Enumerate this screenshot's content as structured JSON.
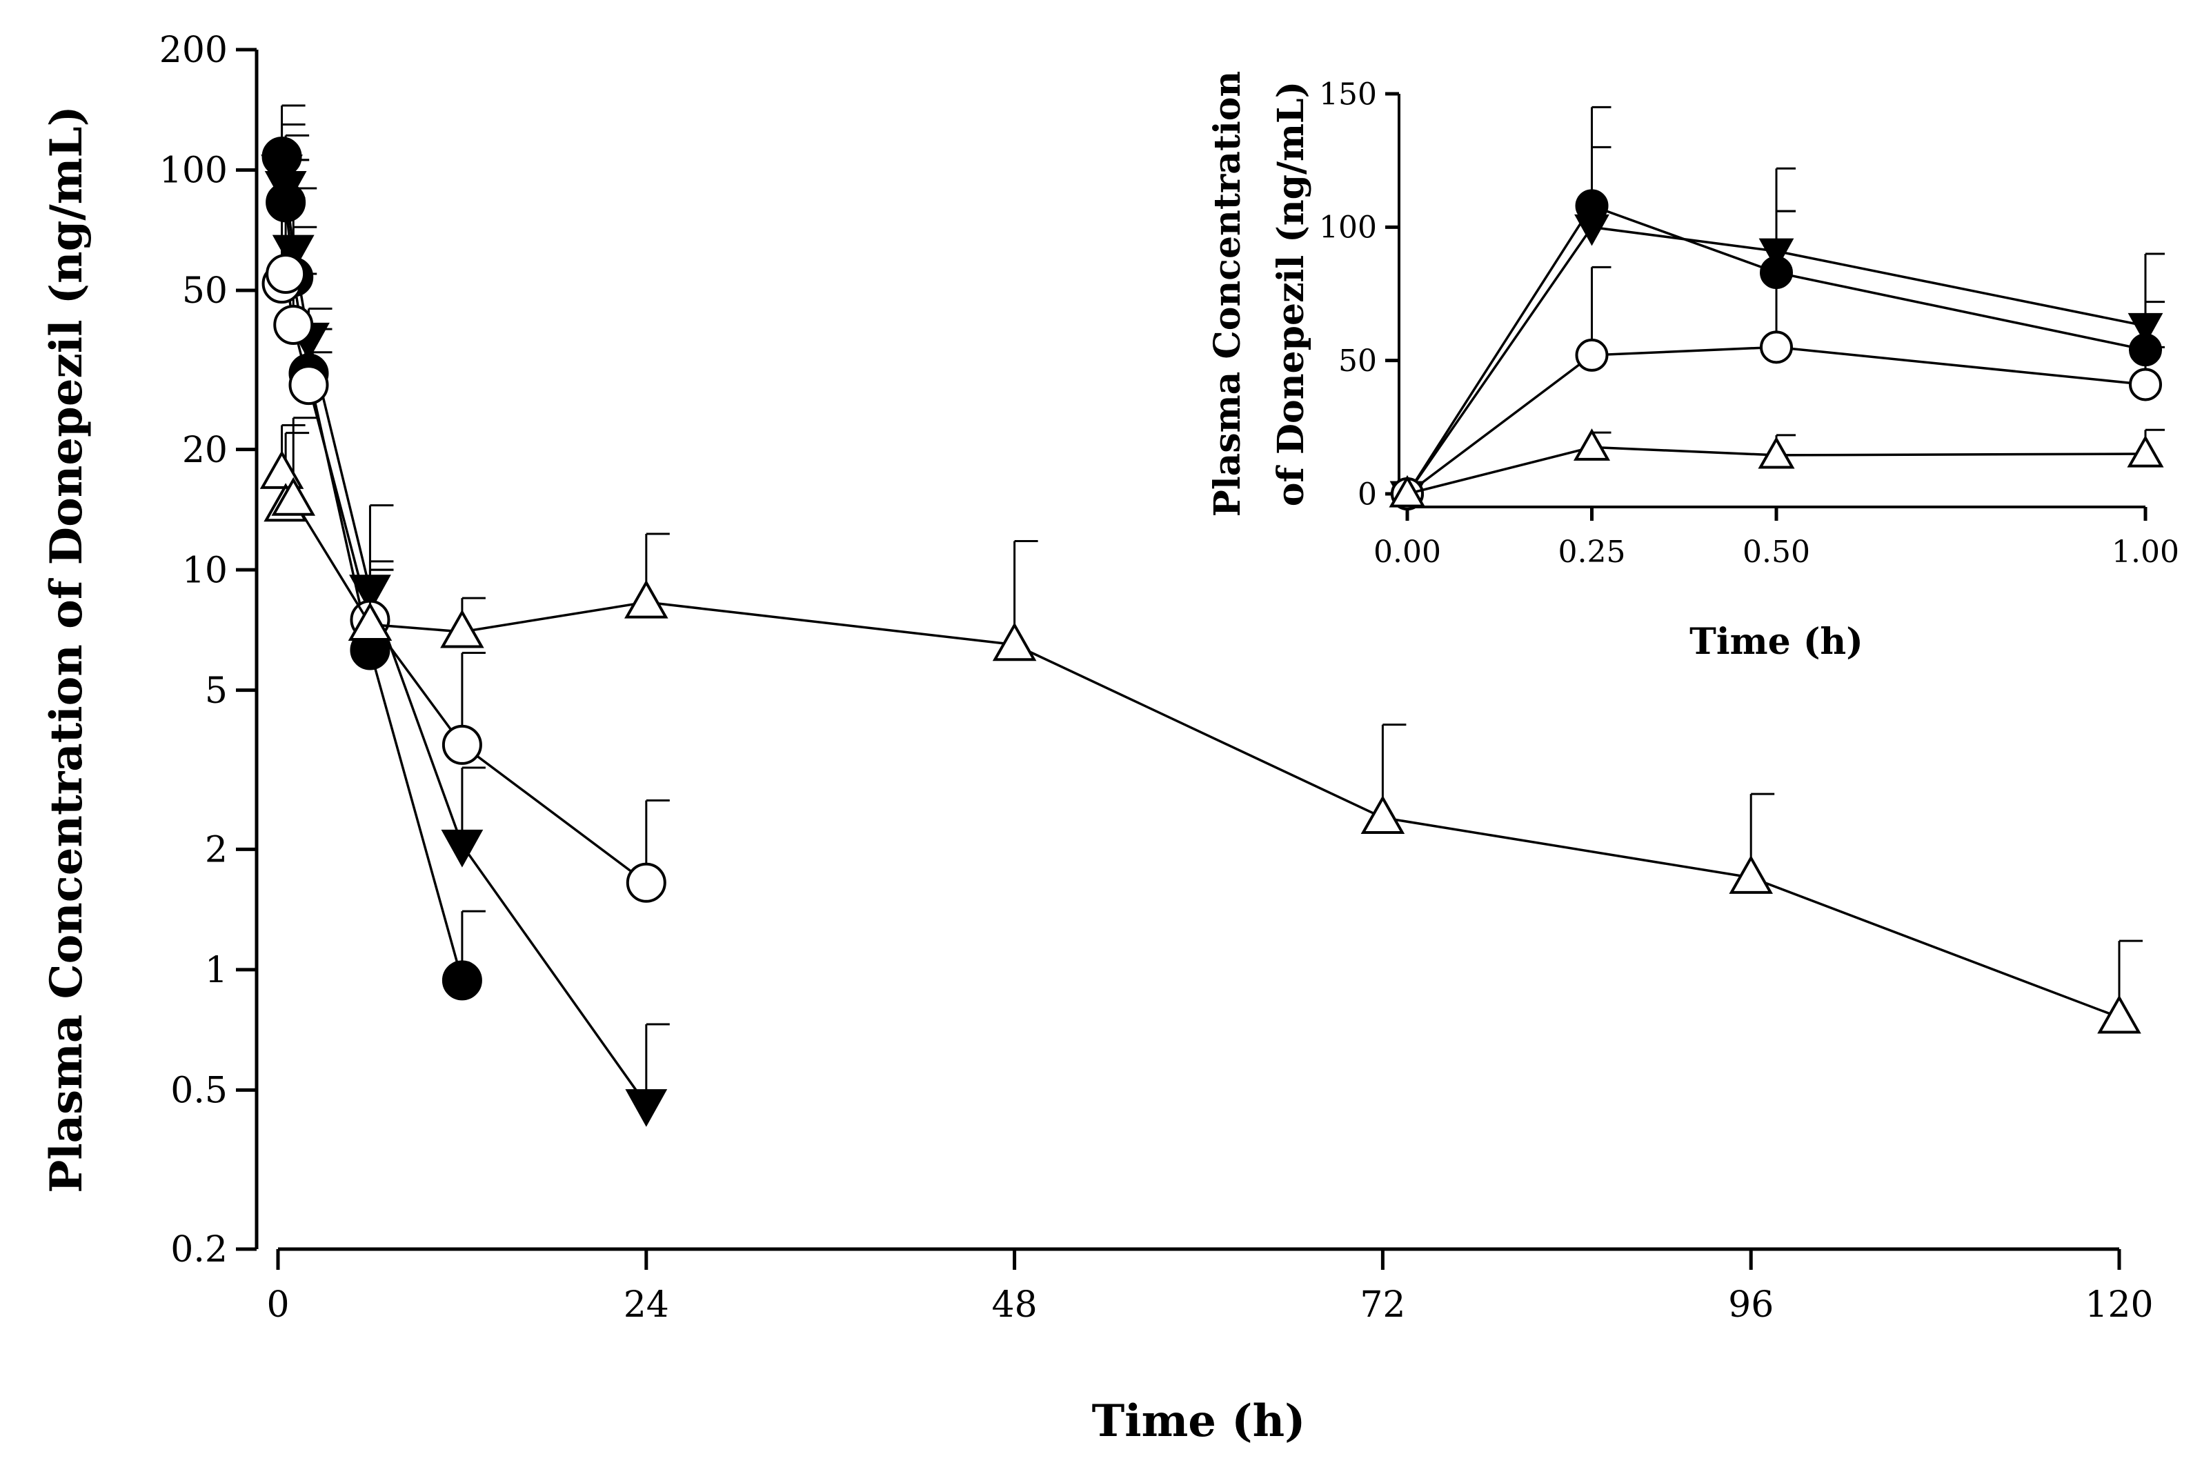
{
  "chart_data": [
    {
      "type": "line",
      "id": "main",
      "title": "",
      "xlabel": "Time (h)",
      "ylabel": "Plasma Concentration of Donepezil (ng/mL)",
      "yscale": "log",
      "ylim": [
        0.2,
        200
      ],
      "xlim": [
        0,
        120
      ],
      "xticks": [
        0,
        24,
        48,
        72,
        96,
        120
      ],
      "xtick_labels": [
        "0",
        "24",
        "48",
        "72",
        "96",
        "120"
      ],
      "yticks": [
        0.2,
        0.5,
        1,
        2,
        5,
        10,
        20,
        50,
        100,
        200
      ],
      "ytick_labels": [
        "0.2",
        "0.5",
        "1",
        "2",
        "5",
        "10",
        "20",
        "50",
        "100",
        "200"
      ],
      "series": [
        {
          "name": "filled-circle",
          "marker": "circle",
          "fill": "#000000",
          "x": [
            0.25,
            0.5,
            1,
            2,
            6,
            12
          ],
          "y": [
            108,
            83,
            54,
            31,
            6.3,
            0.94
          ],
          "err": [
            130,
            106,
            72,
            35,
            10,
            1.4
          ]
        },
        {
          "name": "filled-triangle-down",
          "marker": "triangle-down",
          "fill": "#000000",
          "x": [
            0.25,
            0.5,
            1,
            2,
            6,
            12,
            24
          ],
          "y": [
            100,
            91,
            63,
            38,
            8.9,
            2.05,
            0.46
          ],
          "err": [
            145,
            122,
            90,
            45,
            14.5,
            3.2,
            0.73
          ]
        },
        {
          "name": "open-circle",
          "marker": "circle",
          "fill": "#ffffff",
          "x": [
            0.25,
            0.5,
            1,
            2,
            6,
            12,
            24
          ],
          "y": [
            52,
            55,
            41,
            29,
            7.5,
            3.65,
            1.65
          ],
          "err": [
            85,
            106,
            55,
            40,
            10.5,
            6.2,
            2.65
          ]
        },
        {
          "name": "open-triangle-up",
          "marker": "triangle-up",
          "fill": "#ffffff",
          "x": [
            0.25,
            0.5,
            1,
            6,
            12,
            24,
            48,
            72,
            96,
            120
          ],
          "y": [
            17.5,
            14.5,
            15,
            7.3,
            7.0,
            8.3,
            6.5,
            2.4,
            1.7,
            0.76
          ],
          "err": [
            23,
            22,
            24,
            10,
            8.5,
            12.3,
            11.8,
            4.1,
            2.75,
            1.18
          ]
        }
      ]
    },
    {
      "type": "line",
      "id": "inset",
      "title": "",
      "xlabel": "Time (h)",
      "ylabel": "Plasma Concentration of Donepezil (ng/mL)",
      "ylabel_lines": [
        "Plasma Concentration",
        "of Donepezil (ng/mL)"
      ],
      "yscale": "linear",
      "ylim": [
        0,
        150
      ],
      "xlim": [
        0,
        1
      ],
      "xticks": [
        0,
        0.25,
        0.5,
        1
      ],
      "xtick_labels": [
        "0.00",
        "0.25",
        "0.50",
        "1.00"
      ],
      "yticks": [
        0,
        50,
        100,
        150
      ],
      "ytick_labels": [
        "0",
        "50",
        "100",
        "150"
      ],
      "series": [
        {
          "name": "filled-circle",
          "marker": "circle",
          "fill": "#000000",
          "x": [
            0,
            0.25,
            0.5,
            1
          ],
          "y": [
            0,
            108,
            83,
            54
          ],
          "err": [
            null,
            130,
            106,
            72
          ]
        },
        {
          "name": "filled-triangle-down",
          "marker": "triangle-down",
          "fill": "#000000",
          "x": [
            0,
            0.25,
            0.5,
            1
          ],
          "y": [
            0,
            100,
            91,
            63
          ],
          "err": [
            null,
            145,
            122,
            90
          ]
        },
        {
          "name": "open-circle",
          "marker": "circle",
          "fill": "#ffffff",
          "x": [
            0,
            0.25,
            0.5,
            1
          ],
          "y": [
            0,
            52,
            55,
            41
          ],
          "err": [
            null,
            85,
            106,
            55
          ]
        },
        {
          "name": "open-triangle-up",
          "marker": "triangle-up",
          "fill": "#ffffff",
          "x": [
            0,
            0.25,
            0.5,
            1
          ],
          "y": [
            0,
            17.5,
            14.5,
            15
          ],
          "err": [
            null,
            23,
            22,
            24
          ]
        }
      ]
    }
  ]
}
